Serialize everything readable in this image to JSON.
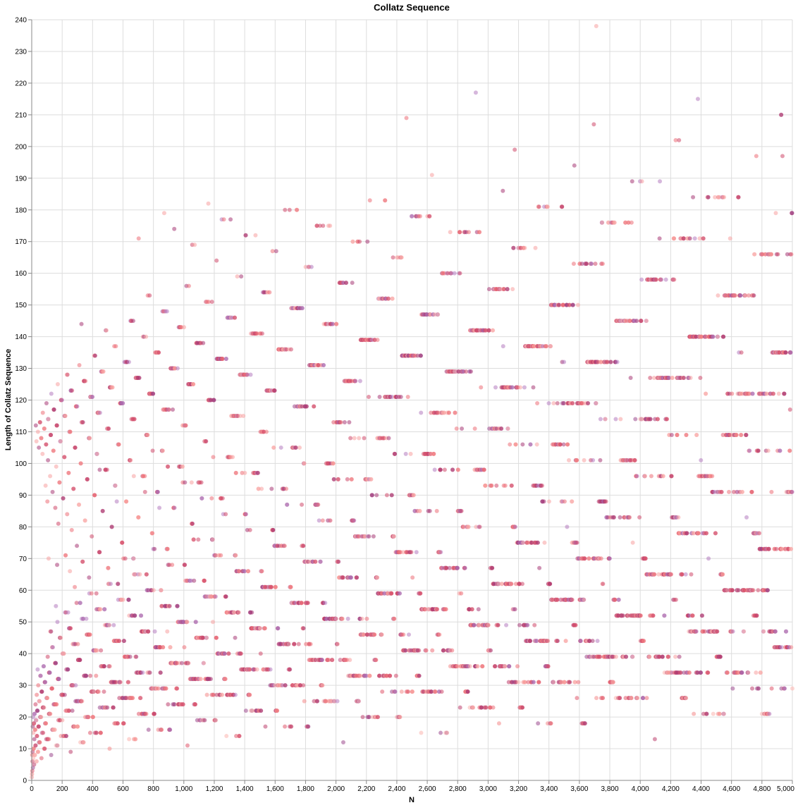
{
  "chart_data": {
    "type": "scatter",
    "title": "Collatz Sequence",
    "xlabel": "N",
    "ylabel": "Length of Collatz Sequence",
    "xlim": [
      0,
      5000
    ],
    "ylim": [
      0,
      240
    ],
    "x_ticks": [
      0,
      200,
      400,
      600,
      800,
      1000,
      1200,
      1400,
      1600,
      1800,
      2000,
      2200,
      2400,
      2600,
      2800,
      3000,
      3200,
      3400,
      3600,
      3800,
      4000,
      4200,
      4400,
      4600,
      4800,
      5000
    ],
    "x_tick_labels": [
      "0",
      "200",
      "400",
      "600",
      "800",
      "1,000",
      "1,200",
      "1,400",
      "1,600",
      "1,800",
      "2,000",
      "2,200",
      "2,400",
      "2,600",
      "2,800",
      "3,000",
      "3,200",
      "3,400",
      "3,600",
      "3,800",
      "4,000",
      "4,200",
      "4,400",
      "4,600",
      "4,800",
      "5,000"
    ],
    "y_ticks": [
      0,
      10,
      20,
      30,
      40,
      50,
      60,
      70,
      80,
      90,
      100,
      110,
      120,
      130,
      140,
      150,
      160,
      170,
      180,
      190,
      200,
      210,
      220,
      230,
      240
    ],
    "grid": true,
    "legend": "none",
    "x_range": [
      1,
      5000
    ],
    "y_formula": "number of terms in the Collatz sequence starting at N (N counted, down to and including 1)",
    "point_count": 5000,
    "color_encoding": "color varies with N mod 10: light pink through red to purple",
    "colors": [
      "#fbb4ae",
      "#f8a0a0",
      "#f48a8a",
      "#ec6f78",
      "#e05a6e",
      "#cf4b6c",
      "#bd416f",
      "#a83a76",
      "#9c4a8e",
      "#b57cc0"
    ],
    "point_opacity": 0.55,
    "notable_points": [
      {
        "x": 3711,
        "y": 238
      },
      {
        "x": 2919,
        "y": 217
      },
      {
        "x": 4379,
        "y": 215
      },
      {
        "x": 4959,
        "y": 210
      },
      {
        "x": 2463,
        "y": 209
      },
      {
        "x": 3695,
        "y": 207
      }
    ]
  }
}
